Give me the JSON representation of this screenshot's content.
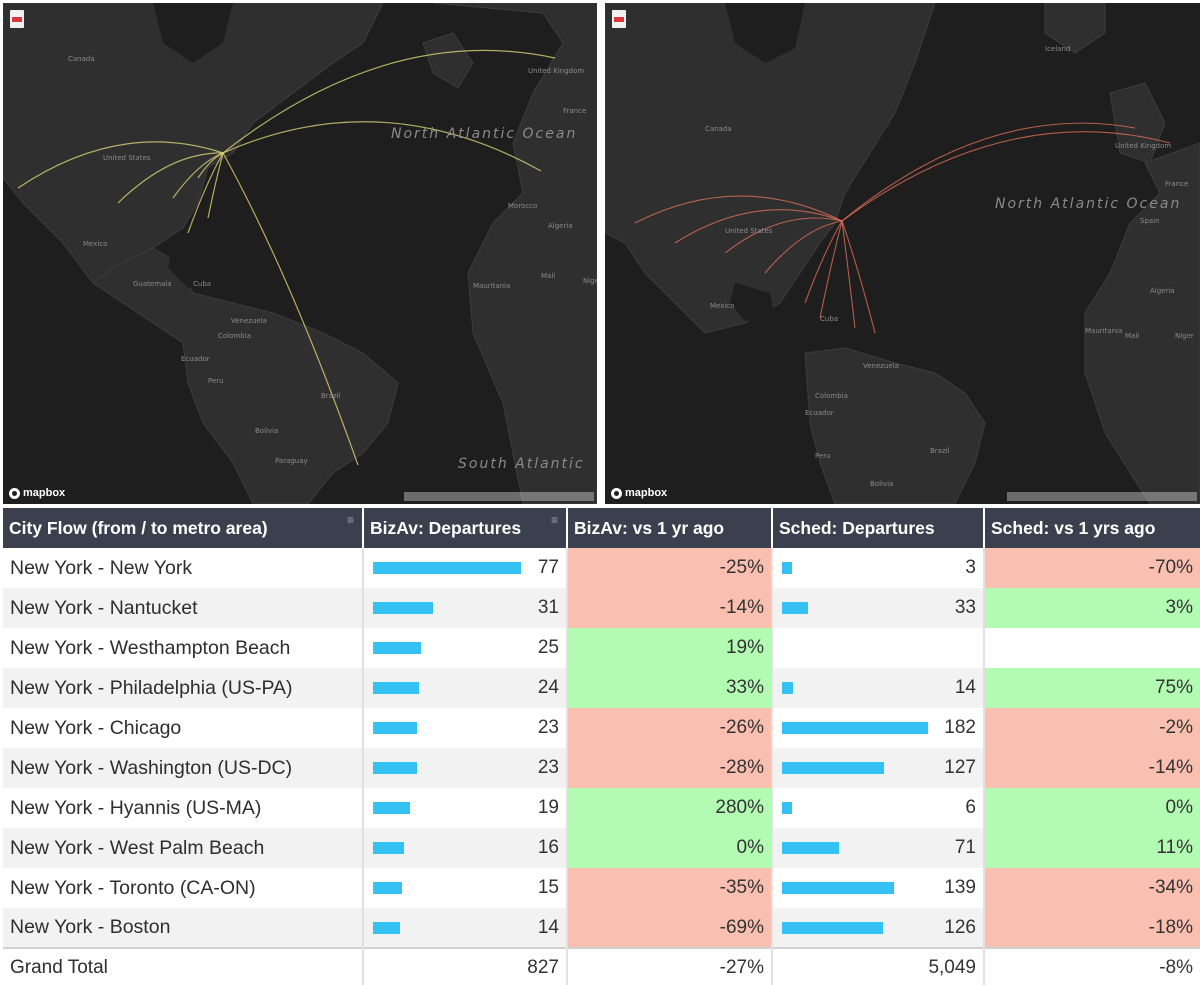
{
  "maps": [
    {
      "id": "bizav",
      "arc_color": "#e6df7a",
      "logo": "mapbox",
      "labels": [
        {
          "text": "Canada"
        },
        {
          "text": "United States"
        },
        {
          "text": "Mexico"
        },
        {
          "text": "Cuba"
        },
        {
          "text": "Guatemala"
        },
        {
          "text": "Venezuela"
        },
        {
          "text": "Colombia"
        },
        {
          "text": "Ecuador"
        },
        {
          "text": "Peru"
        },
        {
          "text": "Brazil"
        },
        {
          "text": "Bolivia"
        },
        {
          "text": "Paraguay"
        },
        {
          "text": "North Atlantic Ocean"
        },
        {
          "text": "South Atlantic"
        },
        {
          "text": "United Kingdom"
        },
        {
          "text": "France"
        },
        {
          "text": "Morocco"
        },
        {
          "text": "Algeria"
        },
        {
          "text": "Mauritania"
        },
        {
          "text": "Mali"
        },
        {
          "text": "Niger"
        }
      ]
    },
    {
      "id": "sched",
      "arc_color": "#e8735a",
      "logo": "mapbox",
      "labels": [
        {
          "text": "Iceland"
        },
        {
          "text": "Canada"
        },
        {
          "text": "United Kingdom"
        },
        {
          "text": "United States"
        },
        {
          "text": "France"
        },
        {
          "text": "Spain"
        },
        {
          "text": "Mexico"
        },
        {
          "text": "Cuba"
        },
        {
          "text": "North Atlantic Ocean"
        },
        {
          "text": "Algeria"
        },
        {
          "text": "Mali"
        },
        {
          "text": "Niger"
        },
        {
          "text": "Venezuela"
        },
        {
          "text": "Colombia"
        },
        {
          "text": "Ecuador"
        },
        {
          "text": "Brazil"
        },
        {
          "text": "Peru"
        },
        {
          "text": "Bolivia"
        },
        {
          "text": "Mauritania"
        }
      ]
    }
  ],
  "table": {
    "headers": {
      "city": "City Flow (from / to metro area)",
      "bizav_dep": "BizAv: Departures",
      "bizav_yoy": "BizAv: vs 1 yr ago",
      "sched_dep": "Sched: Departures",
      "sched_yoy": "Sched: vs 1 yrs ago"
    },
    "rows": [
      {
        "city": "New York - New York",
        "bizav_dep": "77",
        "bizav_val": 77,
        "bizav_yoy": "-25%",
        "bizav_state": "neg",
        "sched_dep": "3",
        "sched_val": 3,
        "sched_yoy": "-70%",
        "sched_state": "neg"
      },
      {
        "city": "New York - Nantucket",
        "bizav_dep": "31",
        "bizav_val": 31,
        "bizav_yoy": "-14%",
        "bizav_state": "neg",
        "sched_dep": "33",
        "sched_val": 33,
        "sched_yoy": "3%",
        "sched_state": "pos"
      },
      {
        "city": "New York - Westhampton Beach",
        "bizav_dep": "25",
        "bizav_val": 25,
        "bizav_yoy": "19%",
        "bizav_state": "pos",
        "sched_dep": "",
        "sched_val": 0,
        "sched_yoy": "",
        "sched_state": "none"
      },
      {
        "city": "New York - Philadelphia (US-PA)",
        "bizav_dep": "24",
        "bizav_val": 24,
        "bizav_yoy": "33%",
        "bizav_state": "pos",
        "sched_dep": "14",
        "sched_val": 14,
        "sched_yoy": "75%",
        "sched_state": "pos"
      },
      {
        "city": "New York - Chicago",
        "bizav_dep": "23",
        "bizav_val": 23,
        "bizav_yoy": "-26%",
        "bizav_state": "neg",
        "sched_dep": "182",
        "sched_val": 182,
        "sched_yoy": "-2%",
        "sched_state": "neg"
      },
      {
        "city": "New York - Washington (US-DC)",
        "bizav_dep": "23",
        "bizav_val": 23,
        "bizav_yoy": "-28%",
        "bizav_state": "neg",
        "sched_dep": "127",
        "sched_val": 127,
        "sched_yoy": "-14%",
        "sched_state": "neg"
      },
      {
        "city": "New York - Hyannis (US-MA)",
        "bizav_dep": "19",
        "bizav_val": 19,
        "bizav_yoy": "280%",
        "bizav_state": "pos",
        "sched_dep": "6",
        "sched_val": 6,
        "sched_yoy": "0%",
        "sched_state": "pos"
      },
      {
        "city": "New York - West Palm Beach",
        "bizav_dep": "16",
        "bizav_val": 16,
        "bizav_yoy": "0%",
        "bizav_state": "pos",
        "sched_dep": "71",
        "sched_val": 71,
        "sched_yoy": "11%",
        "sched_state": "pos"
      },
      {
        "city": "New York - Toronto (CA-ON)",
        "bizav_dep": "15",
        "bizav_val": 15,
        "bizav_yoy": "-35%",
        "bizav_state": "neg",
        "sched_dep": "139",
        "sched_val": 139,
        "sched_yoy": "-34%",
        "sched_state": "neg"
      },
      {
        "city": "New York - Boston",
        "bizav_dep": "14",
        "bizav_val": 14,
        "bizav_yoy": "-69%",
        "bizav_state": "neg",
        "sched_dep": "126",
        "sched_val": 126,
        "sched_yoy": "-18%",
        "sched_state": "neg"
      }
    ],
    "total": {
      "city": "Grand Total",
      "bizav_dep": "827",
      "bizav_yoy": "-27%",
      "sched_dep": "5,049",
      "sched_yoy": "-8%"
    },
    "bar_color": "#33c2f3",
    "pos_color": "#b3fbb3",
    "neg_color": "#f9bfb0"
  }
}
